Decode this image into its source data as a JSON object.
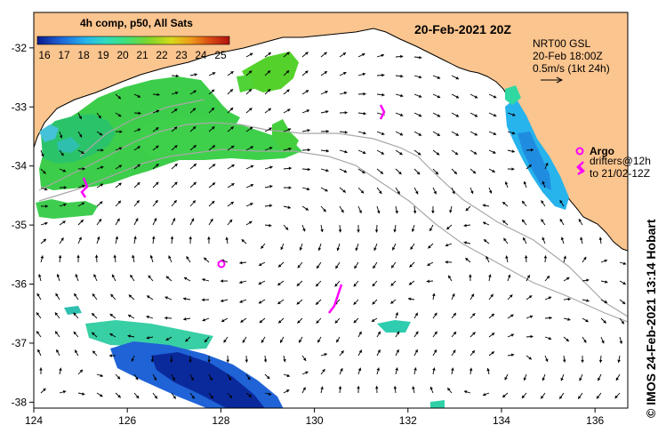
{
  "colorbar": {
    "title": "4h comp, p50, All Sats",
    "ticks": [
      "16",
      "17",
      "18",
      "19",
      "20",
      "21",
      "22",
      "23",
      "24",
      "25"
    ],
    "stops": [
      "#0a1a8c",
      "#1f63d6",
      "#27b3ec",
      "#2fd9c1",
      "#3ee07a",
      "#7fd62a",
      "#d8d81a",
      "#ee9a1a",
      "#d94a14",
      "#b41010"
    ]
  },
  "header": {
    "date": "20-Feb-2021 20Z"
  },
  "legend": {
    "product": "NRT00 GSL",
    "time": "20-Feb 18:00Z",
    "scale": "0.5m/s (1kt 24h)",
    "argo_label": "Argo",
    "drifters_line1": "drifters@12h",
    "drifters_line2": "to 21/02-12Z"
  },
  "credit": {
    "symbol": "©",
    "text": "IMOS 24-Feb-2021 13:14 Hobart"
  },
  "axes": {
    "longitudes": [
      "124",
      "126",
      "128",
      "130",
      "132",
      "134",
      "136"
    ],
    "latitudes": [
      "-32",
      "-33",
      "-34",
      "-35",
      "-36",
      "-37",
      "-38"
    ],
    "lon_range": [
      124,
      136.7
    ],
    "lat_range": [
      -38.1,
      -31.4
    ]
  },
  "colors": {
    "land": "#fbc58f",
    "argo": "#ff00ff",
    "contour": "#a8a8a8",
    "arrow": "#000000"
  }
}
